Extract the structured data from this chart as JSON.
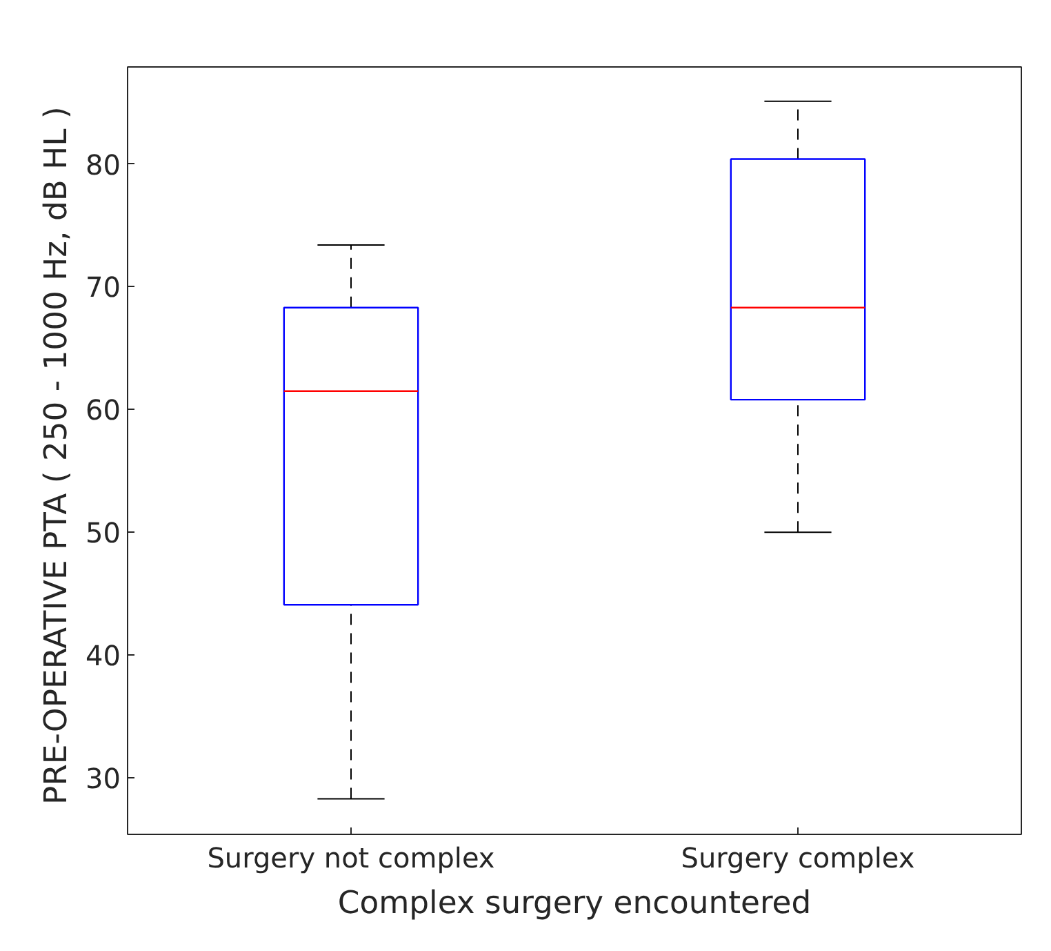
{
  "chart_data": {
    "type": "box",
    "xlabel": "Complex surgery encountered",
    "ylabel": "PRE-OPERATIVE PTA ( 250 - 1000 Hz,  dB HL )",
    "categories": [
      "Surgery not complex",
      "Surgery complex"
    ],
    "series": [
      {
        "color": "#0000ff",
        "boxes": [
          {
            "low": 28.3,
            "q1": 44.1,
            "median": 61.5,
            "q3": 68.3,
            "high": 73.4
          },
          {
            "low": 50.0,
            "q1": 60.8,
            "median": 68.3,
            "q3": 80.4,
            "high": 85.1
          }
        ]
      }
    ],
    "ylim": [
      25.4,
      87.9
    ],
    "yticks": [
      30,
      40,
      50,
      60,
      70,
      80
    ],
    "grid": false
  }
}
